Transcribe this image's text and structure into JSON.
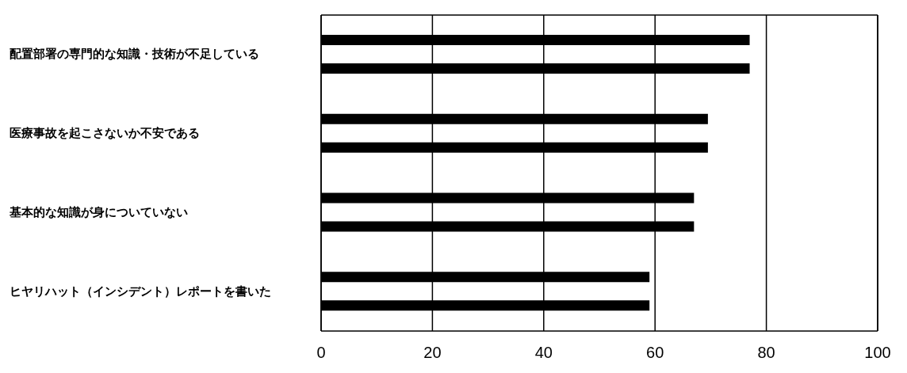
{
  "chart_data": {
    "type": "bar",
    "orientation": "horizontal",
    "categories": [
      "配置部署の専門的な知識・技術が不足している",
      "医療事故を起こさないか不安である",
      "基本的な知識が身についていない",
      "ヒヤリハット（インシデント）レポートを書いた"
    ],
    "series": [
      {
        "color": "#000000",
        "values": [
          77,
          69.5,
          67,
          59
        ]
      },
      {
        "color": "#000000",
        "values": [
          77,
          69.5,
          67,
          59
        ]
      }
    ],
    "xlim": [
      0,
      100
    ],
    "xticks": [
      0,
      20,
      40,
      60,
      80,
      100
    ],
    "grid": "x",
    "legend": false
  }
}
